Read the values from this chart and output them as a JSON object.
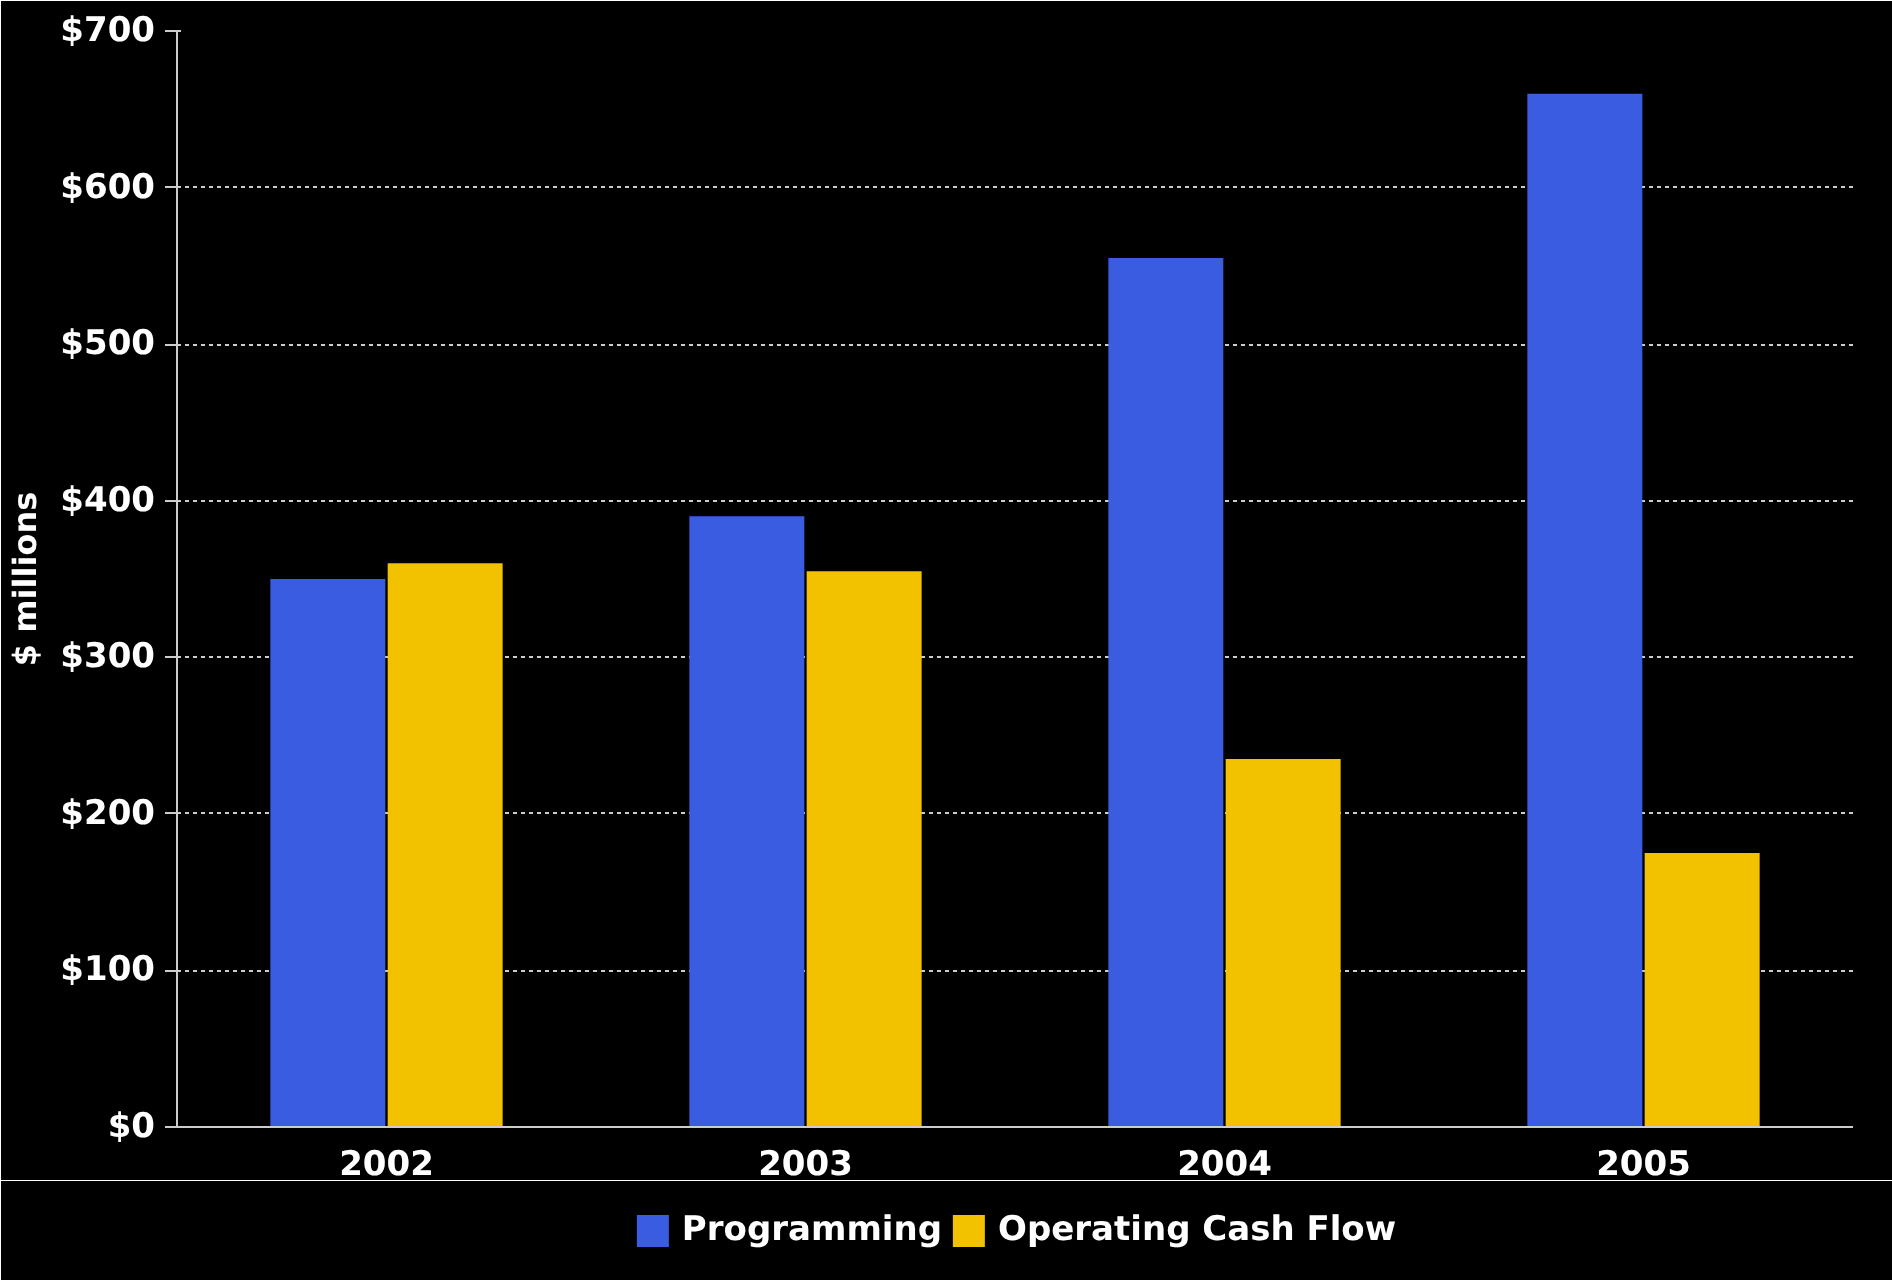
{
  "chart_data": {
    "type": "bar",
    "ylabel": "$ millions",
    "categories": [
      "2002",
      "2003",
      "2004",
      "2005"
    ],
    "series": [
      {
        "name": "Programming",
        "color": "#3a5ce0",
        "values": [
          350,
          390,
          555,
          660
        ]
      },
      {
        "name": "Operating Cash Flow",
        "color": "#f2c200",
        "values": [
          360,
          355,
          235,
          175
        ]
      }
    ],
    "ylim": [
      0,
      700
    ],
    "yticks": [
      {
        "value": 0,
        "label": "$0"
      },
      {
        "value": 100,
        "label": "$100"
      },
      {
        "value": 200,
        "label": "$200"
      },
      {
        "value": 300,
        "label": "$300"
      },
      {
        "value": 400,
        "label": "$400"
      },
      {
        "value": 500,
        "label": "$500"
      },
      {
        "value": 600,
        "label": "$600"
      },
      {
        "value": 700,
        "label": "$700"
      }
    ],
    "grid": "y",
    "legend": "bottom"
  }
}
